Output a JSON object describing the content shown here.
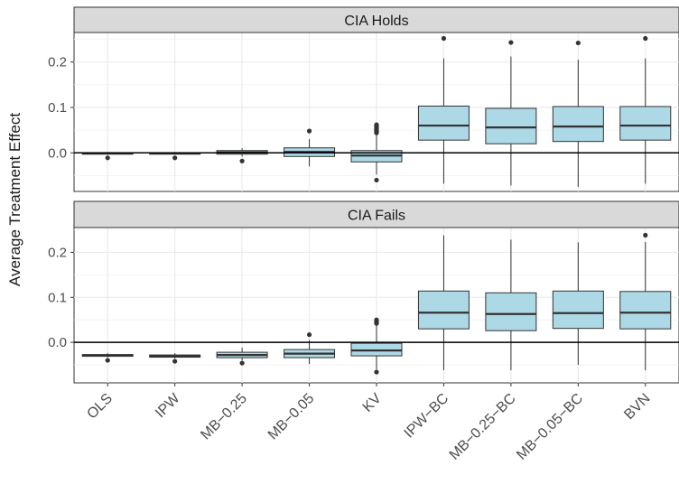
{
  "chart_data": {
    "type": "boxplot",
    "ylabel": "Average Treatment Effect",
    "xlabel": "",
    "categories": [
      "OLS",
      "IPW",
      "MB−0.25",
      "MB−0.05",
      "KV",
      "IPW−BC",
      "MB−0.25−BC",
      "MB−0.05−BC",
      "BVN"
    ],
    "y_ticks": [
      "0.0",
      "0.1",
      "0.2"
    ],
    "reference_line": 0,
    "grid": true,
    "colors": {
      "box_fill": "#add8e6",
      "box_stroke": "#333333",
      "strip_fill": "#d9d9d9",
      "panel_bg": "#ffffff",
      "grid": "#ebebeb"
    },
    "panels": [
      {
        "title": "CIA Holds",
        "ylim": [
          -0.085,
          0.265
        ],
        "boxes": [
          {
            "category": "OLS",
            "min": -0.004,
            "q1": -0.002,
            "median": -0.001,
            "q3": 0.0,
            "max": 0.002,
            "outliers": [
              -0.011
            ]
          },
          {
            "category": "IPW",
            "min": -0.004,
            "q1": -0.002,
            "median": -0.001,
            "q3": 0.0,
            "max": 0.002,
            "outliers": [
              -0.011
            ]
          },
          {
            "category": "MB−0.25",
            "min": -0.008,
            "q1": -0.003,
            "median": 0.001,
            "q3": 0.005,
            "max": 0.01,
            "outliers": [
              -0.018
            ]
          },
          {
            "category": "MB−0.05",
            "min": -0.03,
            "q1": -0.008,
            "median": 0.002,
            "q3": 0.011,
            "max": 0.03,
            "outliers": [
              0.048
            ]
          },
          {
            "category": "KV",
            "min": -0.048,
            "q1": -0.02,
            "median": -0.006,
            "q3": 0.005,
            "max": 0.04,
            "outliers": [
              0.044,
              0.046,
              0.048,
              0.05,
              0.052,
              0.054,
              0.056,
              0.058,
              0.06,
              0.062,
              -0.06
            ]
          },
          {
            "category": "IPW−BC",
            "min": -0.068,
            "q1": 0.028,
            "median": 0.06,
            "q3": 0.103,
            "max": 0.208,
            "outliers": [
              0.252
            ]
          },
          {
            "category": "MB−0.25−BC",
            "min": -0.072,
            "q1": 0.02,
            "median": 0.056,
            "q3": 0.098,
            "max": 0.212,
            "outliers": [
              0.243
            ]
          },
          {
            "category": "MB−0.05−BC",
            "min": -0.075,
            "q1": 0.025,
            "median": 0.058,
            "q3": 0.102,
            "max": 0.205,
            "outliers": [
              0.242
            ]
          },
          {
            "category": "BVN",
            "min": -0.068,
            "q1": 0.028,
            "median": 0.06,
            "q3": 0.102,
            "max": 0.208,
            "outliers": [
              0.252
            ]
          }
        ]
      },
      {
        "title": "CIA Fails",
        "ylim": [
          -0.09,
          0.255
        ],
        "boxes": [
          {
            "category": "OLS",
            "min": -0.034,
            "q1": -0.031,
            "median": -0.029,
            "q3": -0.027,
            "max": -0.024,
            "outliers": [
              -0.04
            ]
          },
          {
            "category": "IPW",
            "min": -0.036,
            "q1": -0.033,
            "median": -0.031,
            "q3": -0.028,
            "max": -0.024,
            "outliers": [
              -0.042
            ]
          },
          {
            "category": "MB−0.25",
            "min": -0.04,
            "q1": -0.034,
            "median": -0.028,
            "q3": -0.022,
            "max": -0.012,
            "outliers": [
              -0.046
            ]
          },
          {
            "category": "MB−0.05",
            "min": -0.048,
            "q1": -0.034,
            "median": -0.025,
            "q3": -0.016,
            "max": 0.005,
            "outliers": [
              0.017
            ]
          },
          {
            "category": "KV",
            "min": -0.06,
            "q1": -0.03,
            "median": -0.018,
            "q3": -0.002,
            "max": 0.04,
            "outliers": [
              0.042,
              0.044,
              0.046,
              0.048,
              0.05,
              -0.066
            ]
          },
          {
            "category": "IPW−BC",
            "min": -0.062,
            "q1": 0.03,
            "median": 0.066,
            "q3": 0.114,
            "max": 0.238,
            "outliers": []
          },
          {
            "category": "MB−0.25−BC",
            "min": -0.062,
            "q1": 0.026,
            "median": 0.063,
            "q3": 0.11,
            "max": 0.228,
            "outliers": []
          },
          {
            "category": "MB−0.05−BC",
            "min": -0.05,
            "q1": 0.031,
            "median": 0.065,
            "q3": 0.114,
            "max": 0.222,
            "outliers": []
          },
          {
            "category": "BVN",
            "min": -0.062,
            "q1": 0.03,
            "median": 0.066,
            "q3": 0.113,
            "max": 0.223,
            "outliers": [
              0.238
            ]
          }
        ]
      }
    ]
  }
}
